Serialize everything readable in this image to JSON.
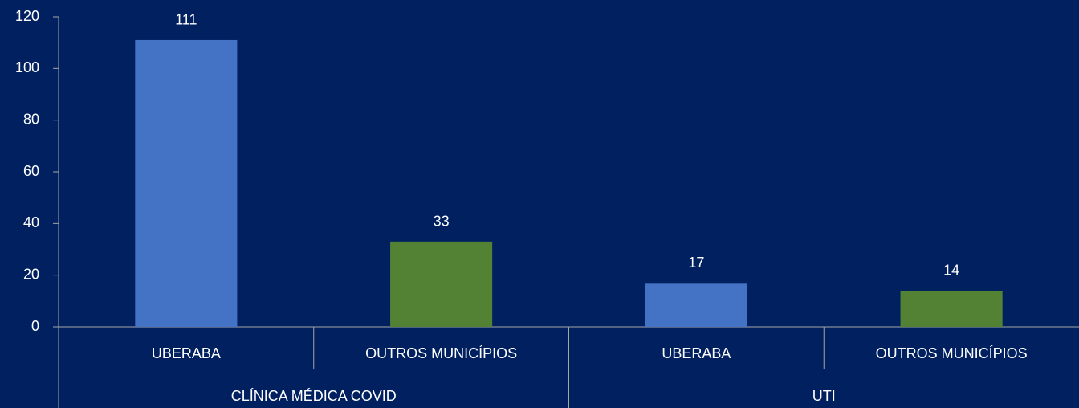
{
  "chart_data": {
    "type": "bar",
    "groups": [
      "CLÍNICA MÉDICA COVID",
      "UTI"
    ],
    "categories": [
      "UBERABA",
      "OUTROS MUNICÍPIOS",
      "UBERABA",
      "OUTROS MUNICÍPIOS"
    ],
    "values": [
      111,
      33,
      17,
      14
    ],
    "colors": [
      "#4472c4",
      "#548235",
      "#4472c4",
      "#548235"
    ],
    "ylim": [
      0,
      120
    ],
    "yticks": [
      0,
      20,
      40,
      60,
      80,
      100,
      120
    ],
    "grid": false
  }
}
